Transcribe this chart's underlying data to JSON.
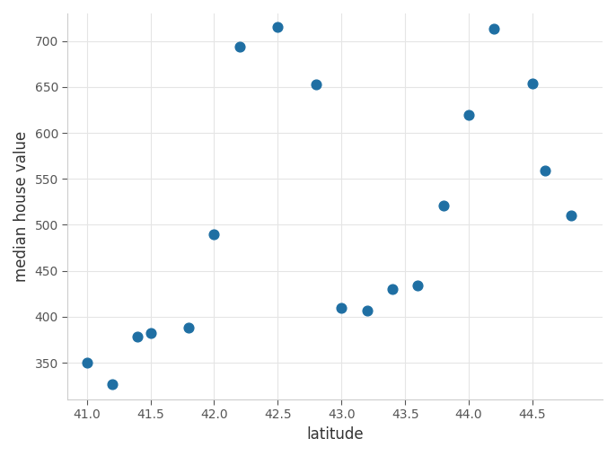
{
  "latitudes": [
    41.0,
    41.2,
    41.4,
    41.5,
    41.8,
    42.0,
    42.2,
    42.5,
    42.8,
    43.0,
    43.2,
    43.4,
    43.6,
    43.8,
    44.0,
    44.2,
    44.5,
    44.6,
    44.8
  ],
  "values": [
    350,
    327,
    378,
    382,
    388,
    490,
    694,
    715,
    653,
    410,
    407,
    430,
    434,
    521,
    620,
    713,
    654,
    559,
    510
  ],
  "dot_color": "#1f6fa3",
  "dot_size": 60,
  "xlabel": "latitude",
  "ylabel": "median house value",
  "xlim": [
    40.85,
    45.05
  ],
  "ylim": [
    310,
    730
  ],
  "yticks": [
    350,
    400,
    450,
    500,
    550,
    600,
    650,
    700
  ],
  "xticks": [
    41.0,
    41.5,
    42.0,
    42.5,
    43.0,
    43.5,
    44.0,
    44.5
  ],
  "background_color": "#ffffff",
  "spine_color": "#cccccc",
  "grid_color": "#e5e5e5"
}
